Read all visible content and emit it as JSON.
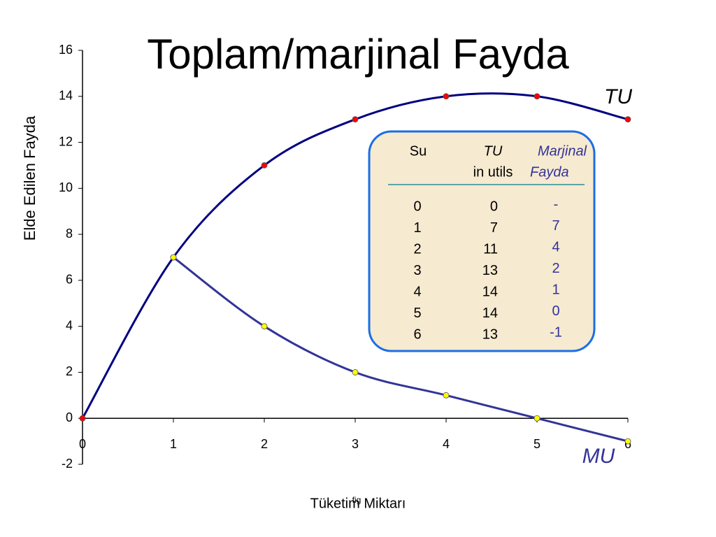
{
  "chart_data": {
    "type": "line",
    "title": "Toplam/marjinal Fayda",
    "x_label": "Tüketim Miktarı",
    "x_label_overlay": "fig",
    "y_label": "Elde Edilen Fayda",
    "x": [
      0,
      1,
      2,
      3,
      4,
      5,
      6
    ],
    "series": [
      {
        "name": "TU",
        "color": "#000080",
        "marker_color": "#ff0000",
        "values": [
          0,
          7,
          11,
          13,
          14,
          14,
          13
        ]
      },
      {
        "name": "MU",
        "color": "#333399",
        "marker_color": "#ffff00",
        "values": [
          null,
          7,
          4,
          2,
          1,
          0,
          -1
        ]
      }
    ],
    "xlim": [
      0,
      6
    ],
    "xticks": [
      0,
      1,
      2,
      3,
      4,
      5,
      6
    ],
    "ylim": [
      -2,
      16
    ],
    "yticks": [
      -2,
      0,
      2,
      4,
      6,
      8,
      10,
      12,
      14,
      16
    ],
    "smooth": true
  },
  "table": {
    "header": [
      "Su",
      "TU",
      "in utils",
      "Marjinal",
      "Fayda"
    ],
    "rows": [
      [
        0,
        0,
        "-"
      ],
      [
        1,
        7,
        7
      ],
      [
        2,
        11,
        4
      ],
      [
        3,
        13,
        2
      ],
      [
        4,
        14,
        1
      ],
      [
        5,
        14,
        0
      ],
      [
        6,
        13,
        -1
      ]
    ]
  }
}
